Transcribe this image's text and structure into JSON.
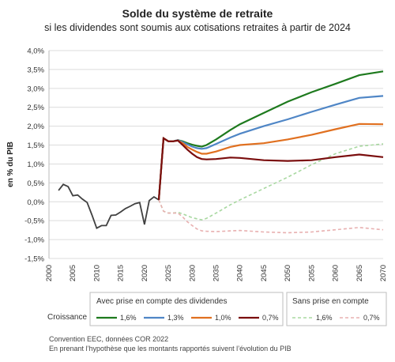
{
  "header": {
    "title": "Solde du système de retraite",
    "subtitle": "si les dividendes sont soumis aux cotisations retraites à partir de 2024"
  },
  "chart_data": {
    "type": "line",
    "ylabel": "en % du PIB",
    "xlim": [
      2000,
      2070
    ],
    "ylim": [
      -1.5,
      4.0
    ],
    "x_ticks": [
      "2000",
      "2005",
      "2010",
      "2015",
      "2020",
      "2025",
      "2030",
      "2035",
      "2040",
      "2045",
      "2050",
      "2055",
      "2060",
      "2065",
      "2070"
    ],
    "y_ticks": [
      "4,0%",
      "3,5%",
      "3,0%",
      "2,5%",
      "2,0%",
      "1,5%",
      "1,0%",
      "0,5%",
      "0,0%",
      "-0,5%",
      "-1,0%",
      "-1,5%"
    ],
    "grid": "horizontal",
    "legend_placement": "bottom",
    "historical": {
      "color": "#404040",
      "points": [
        [
          2002,
          0.3
        ],
        [
          2003,
          0.46
        ],
        [
          2004,
          0.4
        ],
        [
          2005,
          0.16
        ],
        [
          2006,
          0.18
        ],
        [
          2007,
          0.07
        ],
        [
          2008,
          -0.02
        ],
        [
          2009,
          -0.35
        ],
        [
          2010,
          -0.7
        ],
        [
          2011,
          -0.63
        ],
        [
          2012,
          -0.63
        ],
        [
          2013,
          -0.36
        ],
        [
          2014,
          -0.35
        ],
        [
          2015,
          -0.27
        ],
        [
          2016,
          -0.18
        ],
        [
          2017,
          -0.12
        ],
        [
          2018,
          -0.05
        ],
        [
          2019,
          -0.02
        ],
        [
          2020,
          -0.6
        ],
        [
          2021,
          0.03
        ],
        [
          2022,
          0.13
        ],
        [
          2023,
          0.05
        ]
      ]
    },
    "series": [
      {
        "name": "1,6%",
        "group": "with",
        "color": "#1e7a1e",
        "dash": "solid",
        "points": [
          [
            2023,
            0.05
          ],
          [
            2024,
            1.68
          ],
          [
            2025,
            1.6
          ],
          [
            2026,
            1.6
          ],
          [
            2027,
            1.63
          ],
          [
            2028,
            1.6
          ],
          [
            2029,
            1.55
          ],
          [
            2030,
            1.51
          ],
          [
            2031,
            1.48
          ],
          [
            2032,
            1.46
          ],
          [
            2033,
            1.5
          ],
          [
            2035,
            1.65
          ],
          [
            2038,
            1.9
          ],
          [
            2040,
            2.05
          ],
          [
            2045,
            2.35
          ],
          [
            2050,
            2.65
          ],
          [
            2055,
            2.9
          ],
          [
            2060,
            3.12
          ],
          [
            2065,
            3.35
          ],
          [
            2070,
            3.45
          ]
        ]
      },
      {
        "name": "1,3%",
        "group": "with",
        "color": "#4f86c6",
        "dash": "solid",
        "points": [
          [
            2023,
            0.05
          ],
          [
            2024,
            1.68
          ],
          [
            2025,
            1.6
          ],
          [
            2026,
            1.6
          ],
          [
            2027,
            1.63
          ],
          [
            2028,
            1.58
          ],
          [
            2029,
            1.52
          ],
          [
            2030,
            1.46
          ],
          [
            2031,
            1.42
          ],
          [
            2032,
            1.4
          ],
          [
            2033,
            1.42
          ],
          [
            2035,
            1.53
          ],
          [
            2038,
            1.7
          ],
          [
            2040,
            1.8
          ],
          [
            2045,
            2.0
          ],
          [
            2050,
            2.18
          ],
          [
            2055,
            2.38
          ],
          [
            2060,
            2.57
          ],
          [
            2065,
            2.75
          ],
          [
            2070,
            2.8
          ]
        ]
      },
      {
        "name": "1,0%",
        "group": "with",
        "color": "#e07020",
        "dash": "solid",
        "points": [
          [
            2023,
            0.05
          ],
          [
            2024,
            1.68
          ],
          [
            2025,
            1.6
          ],
          [
            2026,
            1.6
          ],
          [
            2027,
            1.62
          ],
          [
            2028,
            1.55
          ],
          [
            2029,
            1.45
          ],
          [
            2030,
            1.38
          ],
          [
            2031,
            1.32
          ],
          [
            2032,
            1.27
          ],
          [
            2033,
            1.27
          ],
          [
            2035,
            1.33
          ],
          [
            2038,
            1.45
          ],
          [
            2040,
            1.5
          ],
          [
            2045,
            1.55
          ],
          [
            2050,
            1.65
          ],
          [
            2055,
            1.77
          ],
          [
            2060,
            1.92
          ],
          [
            2065,
            2.06
          ],
          [
            2070,
            2.05
          ]
        ]
      },
      {
        "name": "0,7%",
        "group": "with",
        "color": "#7a0d0d",
        "dash": "solid",
        "points": [
          [
            2023,
            0.05
          ],
          [
            2024,
            1.68
          ],
          [
            2025,
            1.6
          ],
          [
            2026,
            1.6
          ],
          [
            2027,
            1.62
          ],
          [
            2028,
            1.5
          ],
          [
            2029,
            1.38
          ],
          [
            2030,
            1.27
          ],
          [
            2031,
            1.18
          ],
          [
            2032,
            1.13
          ],
          [
            2033,
            1.12
          ],
          [
            2035,
            1.13
          ],
          [
            2038,
            1.17
          ],
          [
            2040,
            1.16
          ],
          [
            2045,
            1.1
          ],
          [
            2050,
            1.08
          ],
          [
            2055,
            1.1
          ],
          [
            2060,
            1.18
          ],
          [
            2065,
            1.25
          ],
          [
            2070,
            1.18
          ]
        ]
      },
      {
        "name": "1,6%",
        "group": "without",
        "color": "#a8d8a0",
        "dash": "dashed",
        "points": [
          [
            2023,
            0.05
          ],
          [
            2024,
            -0.25
          ],
          [
            2025,
            -0.3
          ],
          [
            2026,
            -0.3
          ],
          [
            2027,
            -0.28
          ],
          [
            2028,
            -0.32
          ],
          [
            2029,
            -0.37
          ],
          [
            2030,
            -0.42
          ],
          [
            2031,
            -0.45
          ],
          [
            2032,
            -0.48
          ],
          [
            2033,
            -0.44
          ],
          [
            2035,
            -0.3
          ],
          [
            2038,
            -0.08
          ],
          [
            2040,
            0.05
          ],
          [
            2045,
            0.35
          ],
          [
            2050,
            0.65
          ],
          [
            2055,
            0.98
          ],
          [
            2060,
            1.27
          ],
          [
            2065,
            1.47
          ],
          [
            2070,
            1.53
          ]
        ]
      },
      {
        "name": "0,7%",
        "group": "without",
        "color": "#e8b0b0",
        "dash": "dashed",
        "points": [
          [
            2023,
            0.05
          ],
          [
            2024,
            -0.25
          ],
          [
            2025,
            -0.3
          ],
          [
            2026,
            -0.3
          ],
          [
            2027,
            -0.3
          ],
          [
            2028,
            -0.4
          ],
          [
            2029,
            -0.53
          ],
          [
            2030,
            -0.63
          ],
          [
            2031,
            -0.72
          ],
          [
            2032,
            -0.77
          ],
          [
            2033,
            -0.78
          ],
          [
            2035,
            -0.79
          ],
          [
            2038,
            -0.77
          ],
          [
            2040,
            -0.76
          ],
          [
            2045,
            -0.8
          ],
          [
            2050,
            -0.82
          ],
          [
            2055,
            -0.8
          ],
          [
            2060,
            -0.74
          ],
          [
            2065,
            -0.68
          ],
          [
            2070,
            -0.74
          ]
        ]
      }
    ]
  },
  "legend": {
    "row_label": "Croissance",
    "group_with": "Avec prise en compte des dividendes",
    "group_without": "Sans prise en compte",
    "items_with": [
      "1,6%",
      "1,3%",
      "1,0%",
      "0,7%"
    ],
    "items_without": [
      "1,6%",
      "0,7%"
    ]
  },
  "footer": {
    "line1": "Convention EEC, données COR 2022",
    "line2": "En prenant l’hypothèse que les montants rapportés suivent l’évolution du PIB"
  }
}
